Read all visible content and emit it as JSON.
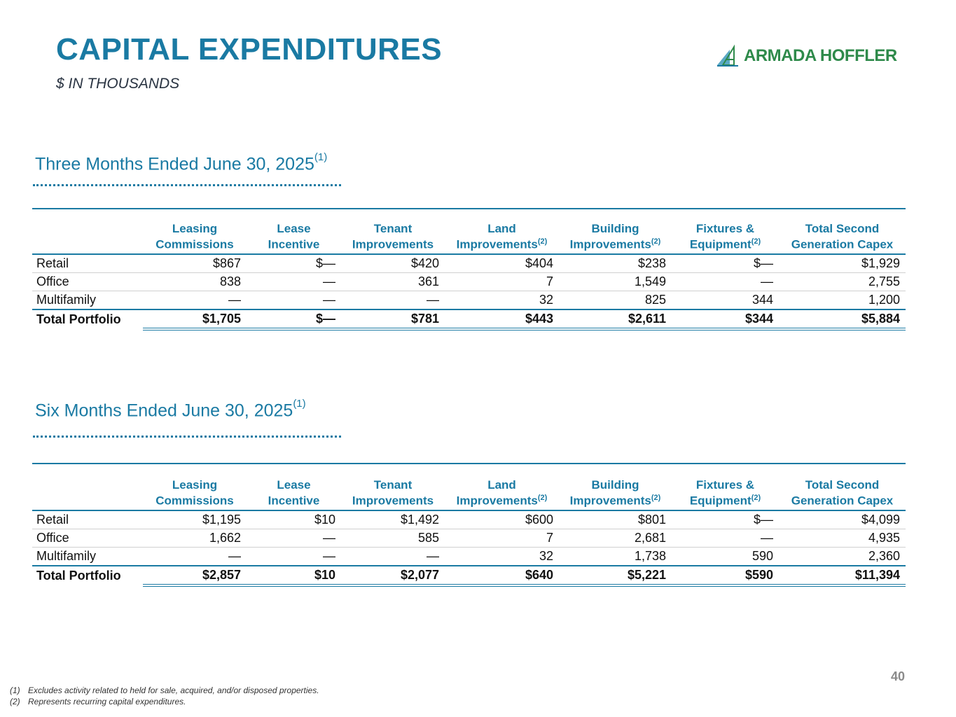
{
  "header": {
    "title": "CAPITAL EXPENDITURES",
    "subtitle": "$ IN THOUSANDS",
    "logo_text": "ARMADA HOFFLER"
  },
  "columns": [
    {
      "line1": "Leasing",
      "line2": "Commissions",
      "sup": ""
    },
    {
      "line1": "Lease",
      "line2": "Incentive",
      "sup": ""
    },
    {
      "line1": "Tenant",
      "line2": "Improvements",
      "sup": ""
    },
    {
      "line1": "Land",
      "line2": "Improvements",
      "sup": "(2)"
    },
    {
      "line1": "Building",
      "line2": "Improvements",
      "sup": "(2)"
    },
    {
      "line1": "Fixtures &",
      "line2": "Equipment",
      "sup": "(2)"
    },
    {
      "line1": "Total Second",
      "line2": "Generation Capex",
      "sup": ""
    }
  ],
  "three_months": {
    "title": "Three Months Ended June 30, 2025",
    "title_sup": "(1)",
    "rows": [
      {
        "label": "Retail",
        "values": [
          "$867",
          "$—",
          "$420",
          "$404",
          "$238",
          "$—",
          "$1,929"
        ]
      },
      {
        "label": "Office",
        "values": [
          "838",
          "—",
          "361",
          "7",
          "1,549",
          "—",
          "2,755"
        ]
      },
      {
        "label": "Multifamily",
        "values": [
          "—",
          "—",
          "—",
          "32",
          "825",
          "344",
          "1,200"
        ]
      },
      {
        "label": "Total Portfolio",
        "values": [
          "$1,705",
          "$—",
          "$781",
          "$443",
          "$2,611",
          "$344",
          "$5,884"
        ]
      }
    ]
  },
  "six_months": {
    "title": "Six Months Ended June 30, 2025",
    "title_sup": "(1)",
    "rows": [
      {
        "label": "Retail",
        "values": [
          "$1,195",
          "$10",
          "$1,492",
          "$600",
          "$801",
          "$—",
          "$4,099"
        ]
      },
      {
        "label": "Office",
        "values": [
          "1,662",
          "—",
          "585",
          "7",
          "2,681",
          "—",
          "4,935"
        ]
      },
      {
        "label": "Multifamily",
        "values": [
          "—",
          "—",
          "—",
          "32",
          "1,738",
          "590",
          "2,360"
        ]
      },
      {
        "label": "Total Portfolio",
        "values": [
          "$2,857",
          "$10",
          "$2,077",
          "$640",
          "$5,221",
          "$590",
          "$11,394"
        ]
      }
    ]
  },
  "page_number": "40",
  "footnotes": [
    {
      "num": "(1)",
      "text": "Excludes activity related to held for sale, acquired, and/or disposed properties."
    },
    {
      "num": "(2)",
      "text": "Represents recurring capital expenditures."
    }
  ]
}
